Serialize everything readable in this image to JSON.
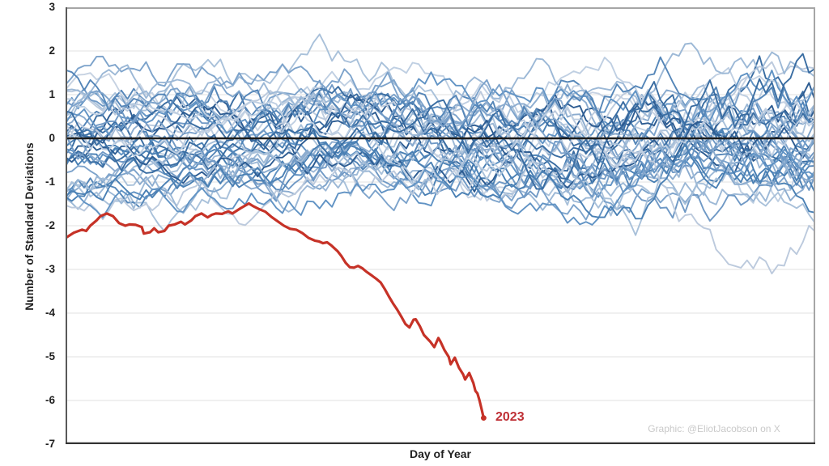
{
  "colors": {
    "background": "#ffffff",
    "red": "#c63227",
    "red_label": "#bf3036",
    "zero_line": "#1c1c1c",
    "gridline": "#e0e0e0",
    "plot_border": "#a6a6a6",
    "axis_line_left": "#595959",
    "axis_line_bottom": "#333333",
    "axis_text": "#1f1f1f",
    "watermark": "#c9c9c9"
  },
  "y_axis": {
    "title": "Number of Standard Deviations",
    "ticks": [
      3,
      2,
      1,
      0,
      -1,
      -2,
      -3,
      -4,
      -5,
      -6,
      -7
    ],
    "min": -7,
    "max": 3
  },
  "x_axis": {
    "title": "Day of Year",
    "min": 1,
    "max": 365,
    "tick_labels_visible": false
  },
  "watermark": "Graphic: @EliotJacobson on X",
  "annotation_2023": "2023",
  "chart_data": {
    "type": "line",
    "title": "",
    "xlabel": "Day of Year",
    "ylabel": "Number of Standard Deviations",
    "xlim": [
      1,
      365
    ],
    "ylim": [
      -7,
      3
    ],
    "grid": true,
    "zero_reference_line": 0,
    "series": [
      {
        "name": "2023",
        "color": "#c63227",
        "label_color": "#bf3036",
        "ends_at_day": 204,
        "points": [
          [
            1,
            -2.28
          ],
          [
            5,
            -2.16
          ],
          [
            9,
            -2.09
          ],
          [
            11,
            -2.12
          ],
          [
            13,
            -2.0
          ],
          [
            16,
            -1.88
          ],
          [
            18,
            -1.78
          ],
          [
            21,
            -1.72
          ],
          [
            24,
            -1.78
          ],
          [
            27,
            -1.94
          ],
          [
            30,
            -2.0
          ],
          [
            32,
            -1.97
          ],
          [
            35,
            -1.98
          ],
          [
            38,
            -2.03
          ],
          [
            39,
            -2.18
          ],
          [
            42,
            -2.15
          ],
          [
            44,
            -2.06
          ],
          [
            46,
            -2.15
          ],
          [
            49,
            -2.12
          ],
          [
            51,
            -2.0
          ],
          [
            54,
            -1.97
          ],
          [
            57,
            -1.91
          ],
          [
            59,
            -1.97
          ],
          [
            62,
            -1.88
          ],
          [
            64,
            -1.78
          ],
          [
            67,
            -1.72
          ],
          [
            70,
            -1.81
          ],
          [
            72,
            -1.75
          ],
          [
            74,
            -1.72
          ],
          [
            77,
            -1.73
          ],
          [
            80,
            -1.67
          ],
          [
            82,
            -1.72
          ],
          [
            86,
            -1.6
          ],
          [
            90,
            -1.49
          ],
          [
            92,
            -1.55
          ],
          [
            95,
            -1.62
          ],
          [
            98,
            -1.68
          ],
          [
            101,
            -1.8
          ],
          [
            104,
            -1.9
          ],
          [
            107,
            -2.0
          ],
          [
            110,
            -2.07
          ],
          [
            113,
            -2.09
          ],
          [
            116,
            -2.17
          ],
          [
            119,
            -2.28
          ],
          [
            122,
            -2.34
          ],
          [
            124,
            -2.36
          ],
          [
            126,
            -2.4
          ],
          [
            128,
            -2.38
          ],
          [
            130,
            -2.45
          ],
          [
            133,
            -2.58
          ],
          [
            135,
            -2.7
          ],
          [
            137,
            -2.85
          ],
          [
            139,
            -2.95
          ],
          [
            141,
            -2.96
          ],
          [
            143,
            -2.92
          ],
          [
            145,
            -2.97
          ],
          [
            147,
            -3.05
          ],
          [
            150,
            -3.15
          ],
          [
            152,
            -3.22
          ],
          [
            154,
            -3.3
          ],
          [
            156,
            -3.45
          ],
          [
            158,
            -3.62
          ],
          [
            160,
            -3.78
          ],
          [
            162,
            -3.92
          ],
          [
            164,
            -4.08
          ],
          [
            166,
            -4.25
          ],
          [
            168,
            -4.33
          ],
          [
            170,
            -4.15
          ],
          [
            171,
            -4.14
          ],
          [
            173,
            -4.3
          ],
          [
            175,
            -4.5
          ],
          [
            178,
            -4.65
          ],
          [
            180,
            -4.78
          ],
          [
            182,
            -4.57
          ],
          [
            183,
            -4.65
          ],
          [
            185,
            -4.85
          ],
          [
            187,
            -5.0
          ],
          [
            188,
            -5.17
          ],
          [
            190,
            -5.02
          ],
          [
            192,
            -5.25
          ],
          [
            194,
            -5.4
          ],
          [
            195,
            -5.52
          ],
          [
            197,
            -5.37
          ],
          [
            199,
            -5.6
          ],
          [
            200,
            -5.78
          ],
          [
            201,
            -5.84
          ],
          [
            202,
            -6.0
          ],
          [
            203,
            -6.2
          ],
          [
            204,
            -6.4
          ]
        ]
      }
    ],
    "background_ensemble": {
      "role": "Unlabeled prior-year traces in shades of blue fluctuating around zero",
      "count": 42,
      "seed": 2023,
      "points_per_line": 122,
      "value_range": [
        -2.65,
        2.85
      ],
      "palette": [
        "#bfcfe2",
        "#9cb8d6",
        "#7da3cb",
        "#6193c4",
        "#4a80b4",
        "#3a6da2",
        "#2d5c92",
        "#a9c1da",
        "#8caccf",
        "#7099c5",
        "#5586b8",
        "#bccadd"
      ],
      "dips": [
        {
          "index": 12,
          "center": 0.567,
          "width": 0.045,
          "depth": -1.9,
          "color": "#c6d2e2"
        },
        {
          "index": 35,
          "center": 0.9,
          "width": 0.09,
          "depth": -1.55,
          "color": "#bccadd"
        }
      ]
    }
  }
}
